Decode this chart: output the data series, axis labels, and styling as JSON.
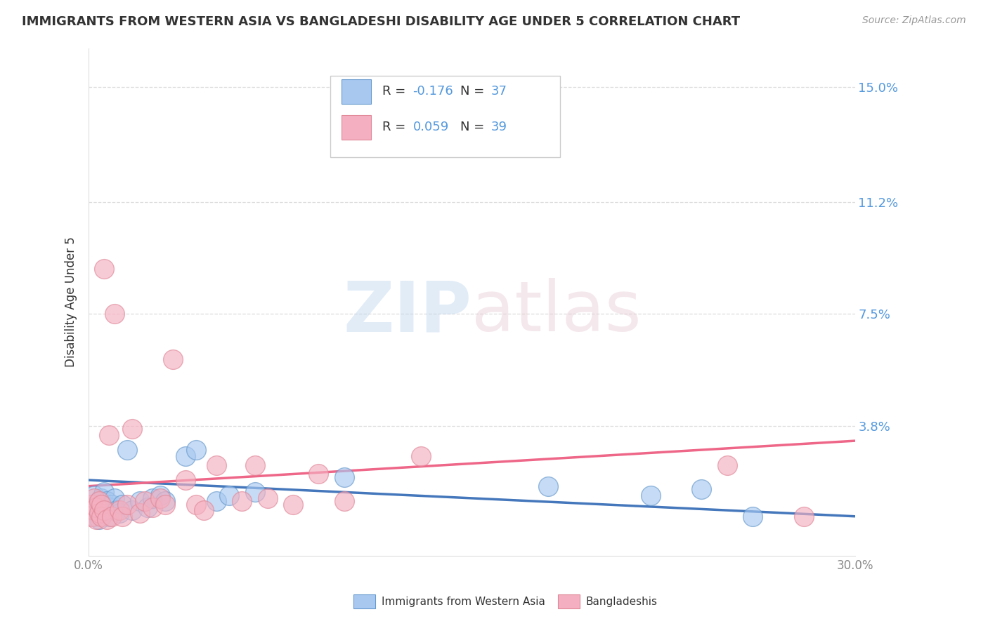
{
  "title": "IMMIGRANTS FROM WESTERN ASIA VS BANGLADESHI DISABILITY AGE UNDER 5 CORRELATION CHART",
  "source": "Source: ZipAtlas.com",
  "ylabel": "Disability Age Under 5",
  "x_min": 0.0,
  "x_max": 0.3,
  "y_min": -0.005,
  "y_max": 0.163,
  "y_ticks": [
    0.038,
    0.075,
    0.112,
    0.15
  ],
  "y_tick_labels": [
    "3.8%",
    "7.5%",
    "11.2%",
    "15.0%"
  ],
  "legend_label_blue": "Immigrants from Western Asia",
  "legend_label_pink": "Bangladeshis",
  "blue_fill": "#A8C8F0",
  "blue_edge": "#6699CC",
  "pink_fill": "#F4B0C0",
  "pink_edge": "#E08898",
  "blue_line_color": "#4477BB",
  "pink_line_color": "#EE6688",
  "text_color_dark": "#333333",
  "text_color_blue": "#5599DD",
  "text_color_gray": "#999999",
  "grid_color": "#DDDDDD",
  "blue_scatter_x": [
    0.001,
    0.002,
    0.002,
    0.003,
    0.003,
    0.004,
    0.004,
    0.005,
    0.005,
    0.006,
    0.006,
    0.007,
    0.007,
    0.008,
    0.008,
    0.009,
    0.01,
    0.011,
    0.012,
    0.013,
    0.015,
    0.017,
    0.02,
    0.023,
    0.025,
    0.028,
    0.03,
    0.038,
    0.042,
    0.05,
    0.055,
    0.065,
    0.1,
    0.18,
    0.22,
    0.24,
    0.26
  ],
  "blue_scatter_y": [
    0.01,
    0.008,
    0.015,
    0.012,
    0.009,
    0.013,
    0.007,
    0.011,
    0.014,
    0.009,
    0.016,
    0.01,
    0.013,
    0.011,
    0.008,
    0.012,
    0.014,
    0.01,
    0.009,
    0.012,
    0.03,
    0.01,
    0.013,
    0.011,
    0.014,
    0.015,
    0.013,
    0.028,
    0.03,
    0.013,
    0.015,
    0.016,
    0.021,
    0.018,
    0.015,
    0.017,
    0.008
  ],
  "pink_scatter_x": [
    0.001,
    0.001,
    0.002,
    0.002,
    0.003,
    0.003,
    0.004,
    0.004,
    0.005,
    0.005,
    0.006,
    0.006,
    0.007,
    0.008,
    0.009,
    0.01,
    0.012,
    0.013,
    0.015,
    0.017,
    0.02,
    0.022,
    0.025,
    0.028,
    0.03,
    0.033,
    0.038,
    0.042,
    0.045,
    0.05,
    0.06,
    0.065,
    0.07,
    0.08,
    0.09,
    0.1,
    0.13,
    0.25,
    0.28
  ],
  "pink_scatter_y": [
    0.008,
    0.012,
    0.01,
    0.014,
    0.007,
    0.011,
    0.009,
    0.013,
    0.008,
    0.012,
    0.01,
    0.09,
    0.007,
    0.035,
    0.008,
    0.075,
    0.01,
    0.008,
    0.012,
    0.037,
    0.009,
    0.013,
    0.011,
    0.014,
    0.012,
    0.06,
    0.02,
    0.012,
    0.01,
    0.025,
    0.013,
    0.025,
    0.014,
    0.012,
    0.022,
    0.013,
    0.028,
    0.025,
    0.008
  ]
}
